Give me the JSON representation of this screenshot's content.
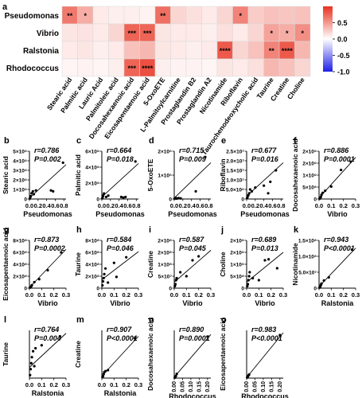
{
  "chart_data": [
    {
      "type": "heatmap",
      "panel_label": "a",
      "rows": [
        "Pseudomonas",
        "Vibrio",
        "Ralstonia",
        "Rhodococcus"
      ],
      "columns": [
        "Stearic acid",
        "Palmitic acid",
        "Lauric Acid",
        "Palmitoleic acid",
        "Docosahexaenoic acid",
        "Eicosapentaenoic acid",
        "5-OxoETE",
        "L-Palmitoylcarnitine",
        "Prostaglandin B2",
        "Prostaglandin A2",
        "Nicotinamide",
        "Riboflavin",
        "Taurochenodeoxycholic acid",
        "Taurine",
        "Creatine",
        "Choline"
      ],
      "values": [
        [
          0.65,
          0.4,
          0.1,
          0.08,
          0.08,
          0.06,
          0.7,
          0.2,
          0.15,
          0.1,
          0.2,
          0.6,
          0.25,
          0.3,
          0.28,
          0.3
        ],
        [
          0.12,
          0.14,
          0.1,
          0.2,
          0.75,
          0.75,
          0.12,
          0.1,
          0.1,
          0.08,
          0.15,
          0.1,
          0.2,
          0.45,
          0.4,
          0.55
        ],
        [
          0.1,
          0.12,
          0.08,
          0.1,
          0.3,
          0.35,
          0.12,
          0.1,
          0.08,
          0.1,
          0.8,
          0.2,
          0.3,
          0.6,
          0.8,
          0.35
        ],
        [
          0.05,
          0.06,
          0.05,
          0.08,
          0.75,
          0.85,
          0.08,
          0.06,
          0.06,
          0.05,
          0.12,
          0.1,
          0.15,
          0.35,
          0.3,
          0.2
        ]
      ],
      "significance": [
        [
          "**",
          "*",
          "",
          "",
          "",
          "",
          "**",
          "",
          "",
          "",
          "",
          "*",
          "",
          "",
          "",
          ""
        ],
        [
          "",
          "",
          "",
          "",
          "***",
          "***",
          "",
          "",
          "",
          "",
          "",
          "",
          "",
          "*",
          "*",
          "*"
        ],
        [
          "",
          "",
          "",
          "",
          "",
          "",
          "",
          "",
          "",
          "",
          "****",
          "",
          "",
          "**",
          "****",
          ""
        ],
        [
          "",
          "",
          "",
          "",
          "***",
          "****",
          "",
          "",
          "",
          "",
          "",
          "",
          "",
          "",
          "",
          ""
        ]
      ],
      "colorbar": {
        "ticks": [
          "0.5",
          "0.0",
          "-0.5",
          "-1.0"
        ],
        "range": [
          -1,
          1
        ],
        "high_color": "#e8311f",
        "mid_color": "#ffffff",
        "low_color": "#1f1fe6"
      }
    },
    {
      "type": "scatter",
      "panel_label": "b",
      "ylabel": "Stearic acid",
      "xlabel": "Pseudomonas",
      "r_text": "r=0.786",
      "p_text": "P=0.002",
      "xticks": [
        "0.0",
        "0.2",
        "0.4",
        "0.6",
        "0.8"
      ],
      "xlim": [
        0,
        0.85
      ],
      "yticks": [
        "0",
        "1×10⁹",
        "2×10⁹",
        "3×10⁹",
        "4×10⁹",
        "5×10⁹"
      ],
      "ylim": [
        0,
        5
      ],
      "points": [
        [
          0.01,
          0.05
        ],
        [
          0.02,
          0.2
        ],
        [
          0.03,
          0.3
        ],
        [
          0.05,
          0.6
        ],
        [
          0.08,
          0.8
        ],
        [
          0.1,
          0.5
        ],
        [
          0.15,
          0.9
        ],
        [
          0.5,
          0.9
        ],
        [
          0.55,
          0.8
        ],
        [
          0.78,
          3.8
        ]
      ],
      "fit": [
        [
          0,
          0.1
        ],
        [
          0.85,
          3.6
        ]
      ]
    },
    {
      "type": "scatter",
      "panel_label": "c",
      "ylabel": "Palmitic acid",
      "xlabel": "Pseudomonas",
      "r_text": "r=0.664",
      "p_text": "P=0.018",
      "xticks": [
        "0.0",
        "0.2",
        "0.4",
        "0.6",
        "0.8"
      ],
      "xlim": [
        0,
        0.85
      ],
      "yticks": [
        "0",
        "2×10⁹",
        "4×10⁹",
        "6×10⁹"
      ],
      "ylim": [
        0,
        7
      ],
      "points": [
        [
          0.01,
          0.1
        ],
        [
          0.02,
          0.3
        ],
        [
          0.03,
          0.5
        ],
        [
          0.05,
          0.8
        ],
        [
          0.1,
          0.3
        ],
        [
          0.15,
          0.5
        ],
        [
          0.45,
          0.3
        ],
        [
          0.5,
          0.2
        ],
        [
          0.55,
          0.3
        ],
        [
          0.78,
          5.5
        ]
      ],
      "fit": [
        [
          0,
          0.3
        ],
        [
          0.85,
          5.2
        ]
      ]
    },
    {
      "type": "scatter",
      "panel_label": "d",
      "ylabel": "5-OxoETE",
      "xlabel": "Pseudomonas",
      "r_text": "r=0.715",
      "p_text": "P=0.009",
      "xticks": [
        "0.0",
        "0.2",
        "0.4",
        "0.6",
        "0.8"
      ],
      "xlim": [
        0,
        0.85
      ],
      "yticks": [
        "0",
        "1×10⁶",
        "2×10⁶"
      ],
      "ylim": [
        0,
        2.5
      ],
      "points": [
        [
          0.01,
          0.02
        ],
        [
          0.02,
          0.03
        ],
        [
          0.04,
          0.05
        ],
        [
          0.06,
          0.02
        ],
        [
          0.1,
          0.05
        ],
        [
          0.15,
          0.03
        ],
        [
          0.5,
          0.4
        ],
        [
          0.72,
          2.2
        ]
      ],
      "fit": [
        [
          0,
          0.05
        ],
        [
          0.85,
          1.9
        ]
      ]
    },
    {
      "type": "scatter",
      "panel_label": "e",
      "ylabel": "Riboflavin",
      "xlabel": "Pseudomonas",
      "r_text": "r=0.677",
      "p_text": "P=0.016",
      "xticks": [
        "0.0",
        "0.2",
        "0.4",
        "0.6",
        "0.8"
      ],
      "xlim": [
        0,
        0.85
      ],
      "yticks": [
        "0",
        "5.0×10⁶",
        "1.0×10⁷",
        "1.5×10⁷",
        "2.0×10⁷",
        "2.5×10⁷"
      ],
      "ylim": [
        0,
        2.5
      ],
      "points": [
        [
          0.01,
          0.05
        ],
        [
          0.02,
          0.1
        ],
        [
          0.04,
          0.2
        ],
        [
          0.06,
          0.3
        ],
        [
          0.08,
          0.5
        ],
        [
          0.12,
          0.4
        ],
        [
          0.2,
          0.6
        ],
        [
          0.4,
          0.7
        ],
        [
          0.5,
          0.3
        ],
        [
          0.55,
          0.9
        ],
        [
          0.68,
          1.5
        ]
      ],
      "fit": [
        [
          0,
          0.15
        ],
        [
          0.85,
          1.9
        ]
      ]
    },
    {
      "type": "scatter",
      "panel_label": "f",
      "ylabel": "Docosahexaenoic acid",
      "xlabel": "Vibrio",
      "r_text": "r=0.886",
      "p_text": "P=0.0001",
      "xticks": [
        "0.0",
        "0.1",
        "0.2",
        "0.3"
      ],
      "xlim": [
        0,
        0.3
      ],
      "yticks": [
        "0",
        "5×10⁸",
        "1×10⁹",
        "2×10⁹",
        "2×10⁹"
      ],
      "ylim": [
        0,
        2.3
      ],
      "points": [
        [
          0.005,
          0.02
        ],
        [
          0.01,
          0.05
        ],
        [
          0.015,
          0.1
        ],
        [
          0.02,
          0.2
        ],
        [
          0.03,
          0.3
        ],
        [
          0.05,
          0.4
        ],
        [
          0.1,
          0.6
        ],
        [
          0.18,
          1.4
        ],
        [
          0.26,
          1.8
        ]
      ],
      "fit": [
        [
          0,
          0.05
        ],
        [
          0.3,
          2.0
        ]
      ]
    },
    {
      "type": "scatter",
      "panel_label": "g",
      "ylabel": "Eicosapentaenoic acid",
      "xlabel": "Vibrio",
      "r_text": "r=0.873",
      "p_text": "P=0.0002",
      "xticks": [
        "0.0",
        "0.1",
        "0.2",
        "0.3"
      ],
      "xlim": [
        0,
        0.3
      ],
      "yticks": [
        "0",
        "2×10⁸",
        "4×10⁸",
        "6×10⁸",
        "8×10⁸"
      ],
      "ylim": [
        0,
        8
      ],
      "points": [
        [
          0.005,
          0.1
        ],
        [
          0.01,
          0.2
        ],
        [
          0.015,
          0.3
        ],
        [
          0.02,
          0.5
        ],
        [
          0.04,
          1.0
        ],
        [
          0.08,
          1.5
        ],
        [
          0.15,
          3.0
        ],
        [
          0.26,
          6.0
        ]
      ],
      "fit": [
        [
          0,
          0.1
        ],
        [
          0.3,
          6.5
        ]
      ]
    },
    {
      "type": "scatter",
      "panel_label": "h",
      "ylabel": "Taurine",
      "xlabel": "Vibrio",
      "r_text": "r=0.584",
      "p_text": "P=0.046",
      "xticks": [
        "0.0",
        "0.1",
        "0.2",
        "0.3"
      ],
      "xlim": [
        0,
        0.3
      ],
      "yticks": [
        "0",
        "2×10⁸",
        "4×10⁸",
        "6×10⁸",
        "8×10⁸"
      ],
      "ylim": [
        0,
        8.5
      ],
      "points": [
        [
          0.005,
          0.5
        ],
        [
          0.01,
          1.2
        ],
        [
          0.015,
          1.8
        ],
        [
          0.02,
          2.5
        ],
        [
          0.03,
          3.5
        ],
        [
          0.05,
          1.0
        ],
        [
          0.1,
          4.5
        ],
        [
          0.12,
          2.0
        ],
        [
          0.2,
          5.5
        ]
      ],
      "fit": [
        [
          0,
          1.5
        ],
        [
          0.3,
          6.5
        ]
      ]
    },
    {
      "type": "scatter",
      "panel_label": "i",
      "ylabel": "Creatine",
      "xlabel": "Vibrio",
      "r_text": "r=0.587",
      "p_text": "P=0.045",
      "xticks": [
        "0.0",
        "0.1",
        "0.2",
        "0.3"
      ],
      "xlim": [
        0,
        0.3
      ],
      "yticks": [
        "0",
        "5×10⁷",
        "1×10⁸",
        "2×10⁸",
        "2×10⁸"
      ],
      "ylim": [
        0,
        2.4
      ],
      "points": [
        [
          0.005,
          0.1
        ],
        [
          0.01,
          0.2
        ],
        [
          0.015,
          0.4
        ],
        [
          0.02,
          0.5
        ],
        [
          0.05,
          0.8
        ],
        [
          0.1,
          0.6
        ],
        [
          0.15,
          1.4
        ],
        [
          0.2,
          1.6
        ]
      ],
      "fit": [
        [
          0,
          0.3
        ],
        [
          0.3,
          1.9
        ]
      ]
    },
    {
      "type": "scatter",
      "panel_label": "j",
      "ylabel": "Choline",
      "xlabel": "Vibrio",
      "r_text": "r=0.689",
      "p_text": "P=0.013",
      "xticks": [
        "0.0",
        "0.1",
        "0.2",
        "0.3"
      ],
      "xlim": [
        0,
        0.3
      ],
      "yticks": [
        "0",
        "5×10⁸",
        "1×10⁹",
        "2×10⁹",
        "2×10⁹"
      ],
      "ylim": [
        0,
        2.4
      ],
      "points": [
        [
          0.005,
          0.1
        ],
        [
          0.01,
          0.2
        ],
        [
          0.015,
          0.4
        ],
        [
          0.02,
          0.6
        ],
        [
          0.025,
          0.8
        ],
        [
          0.05,
          0.5
        ],
        [
          0.1,
          0.4
        ],
        [
          0.15,
          1.4
        ],
        [
          0.18,
          1.45
        ],
        [
          0.25,
          1.0
        ]
      ],
      "fit": [
        [
          0,
          0.3
        ],
        [
          0.3,
          1.8
        ]
      ]
    },
    {
      "type": "scatter",
      "panel_label": "k",
      "ylabel": "Nicotinamide",
      "xlabel": "Ralstonia",
      "r_text": "r=0.943",
      "p_text": "P<0.0001",
      "xticks": [
        "0.0",
        "0.1",
        "0.2",
        "0.3"
      ],
      "xlim": [
        0,
        0.3
      ],
      "yticks": [
        "0",
        "5.0×10⁷",
        "1.0×10⁸",
        "1.5×10⁸"
      ],
      "ylim": [
        0,
        1.55
      ],
      "points": [
        [
          0.005,
          0.02
        ],
        [
          0.01,
          0.05
        ],
        [
          0.015,
          0.1
        ],
        [
          0.02,
          0.15
        ],
        [
          0.04,
          0.25
        ],
        [
          0.08,
          0.35
        ],
        [
          0.27,
          1.25
        ]
      ],
      "fit": [
        [
          0,
          0.05
        ],
        [
          0.3,
          1.3
        ]
      ]
    },
    {
      "type": "scatter",
      "panel_label": "l",
      "ylabel": "Taurine",
      "xlabel": "Ralstonia",
      "r_text": "r=0.764",
      "p_text": "P=0.004",
      "xticks": [
        "0.0",
        "0.1",
        "0.2",
        "0.3"
      ],
      "xlim": [
        0,
        0.3
      ],
      "yticks": [],
      "ylim": [
        0,
        8
      ],
      "points": [
        [
          0.005,
          0.5
        ],
        [
          0.01,
          1.5
        ],
        [
          0.015,
          2.5
        ],
        [
          0.02,
          3.5
        ],
        [
          0.03,
          4.5
        ],
        [
          0.04,
          2.0
        ],
        [
          0.05,
          5.0
        ],
        [
          0.1,
          5.5
        ],
        [
          0.25,
          7.0
        ]
      ],
      "fit": [
        [
          0,
          1.8
        ],
        [
          0.3,
          7.5
        ]
      ]
    },
    {
      "type": "scatter",
      "panel_label": "m",
      "ylabel": "Creatine",
      "xlabel": "Ralstonia",
      "r_text": "r=0.907",
      "p_text": "P<0.0001",
      "xticks": [
        "0.0",
        "0.1",
        "0.2",
        "0.3"
      ],
      "xlim": [
        0,
        0.3
      ],
      "yticks": [],
      "ylim": [
        0,
        2.4
      ],
      "points": [
        [
          0.005,
          0.05
        ],
        [
          0.01,
          0.1
        ],
        [
          0.015,
          0.2
        ],
        [
          0.02,
          0.3
        ],
        [
          0.03,
          0.35
        ],
        [
          0.05,
          0.4
        ],
        [
          0.27,
          2.0
        ]
      ],
      "fit": [
        [
          0,
          0.1
        ],
        [
          0.3,
          2.1
        ]
      ]
    },
    {
      "type": "scatter",
      "panel_label": "n",
      "ylabel": "Docosahexaenoic acid",
      "xlabel": "Rhodococcus",
      "r_text": "r=0.890",
      "p_text": "P=0.0001",
      "xticks": [
        "0.00",
        "0.05",
        "0.10",
        "0.15",
        "0.20"
      ],
      "xlim": [
        0,
        0.22
      ],
      "yticks": [],
      "ylim": [
        0,
        2.3
      ],
      "points": [
        [
          0.003,
          0.02
        ],
        [
          0.006,
          0.05
        ],
        [
          0.01,
          0.1
        ],
        [
          0.015,
          0.2
        ],
        [
          0.2,
          2.0
        ]
      ],
      "fit": [
        [
          0,
          0.05
        ],
        [
          0.22,
          2.1
        ]
      ]
    },
    {
      "type": "scatter",
      "panel_label": "o",
      "ylabel": "Eicosapentaenoic acid",
      "xlabel": "Rhodococcus",
      "r_text": "r=0.983",
      "p_text": "P<0.0001",
      "xticks": [
        "0.00",
        "0.05",
        "0.10",
        "0.15",
        "0.20"
      ],
      "xlim": [
        0,
        0.22
      ],
      "yticks": [],
      "ylim": [
        0,
        8
      ],
      "points": [
        [
          0.003,
          0.1
        ],
        [
          0.006,
          0.2
        ],
        [
          0.01,
          0.4
        ],
        [
          0.015,
          0.6
        ],
        [
          0.2,
          7.2
        ]
      ],
      "fit": [
        [
          0,
          0.1
        ],
        [
          0.22,
          7.6
        ]
      ]
    }
  ]
}
